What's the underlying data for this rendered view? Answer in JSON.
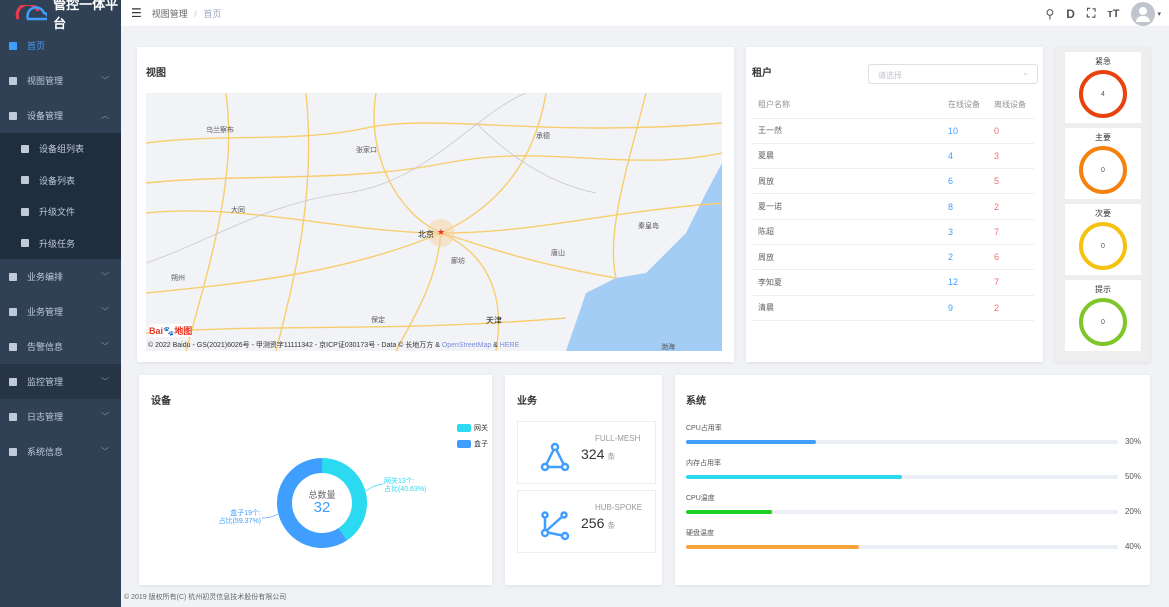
{
  "app": {
    "title": "管控一体平台"
  },
  "sidebar": {
    "items": [
      {
        "label": "首页",
        "active": true
      },
      {
        "label": "视图管理"
      },
      {
        "label": "设备管理",
        "open": true
      },
      {
        "label": "设备组列表",
        "sub": true
      },
      {
        "label": "设备列表",
        "sub": true
      },
      {
        "label": "升级文件",
        "sub": true
      },
      {
        "label": "升级任务",
        "sub": true
      },
      {
        "label": "业务编排"
      },
      {
        "label": "业务管理"
      },
      {
        "label": "告警信息"
      },
      {
        "label": "监控管理"
      },
      {
        "label": "日志管理"
      },
      {
        "label": "系统信息"
      }
    ]
  },
  "header": {
    "breadcrumb": [
      "视图管理",
      "首页"
    ],
    "separator": "/",
    "icons": [
      "search-icon",
      "d-icon",
      "fullscreen-icon",
      "font-size-icon",
      "avatar"
    ]
  },
  "map": {
    "title": "视图",
    "cities": [
      "乌兰察布",
      "大同",
      "朔州",
      "张家口",
      "承德",
      "北京",
      "廊坊",
      "天津",
      "唐山",
      "秦皇岛",
      "保定",
      "渤海"
    ],
    "attribution": "© 2022 Baidu - GS(2021)6026号 - 甲测资字11111342 - 京ICP证030173号 - Data © 长地万方 & ",
    "osm": "OpenStreetMap",
    "amp": " & ",
    "here": "HERE",
    "logo": "Baidu地图"
  },
  "tenant": {
    "title": "租户",
    "placeholder": "请选择",
    "columns": [
      "租户名称",
      "在线设备",
      "离线设备"
    ],
    "rows": [
      [
        "王一然",
        "10",
        "0"
      ],
      [
        "夏晨",
        "4",
        "3"
      ],
      [
        "周放",
        "6",
        "5"
      ],
      [
        "夏一诺",
        "8",
        "2"
      ],
      [
        "陈超",
        "3",
        "7"
      ],
      [
        "周放",
        "2",
        "6"
      ],
      [
        "李知夏",
        "12",
        "7"
      ],
      [
        "清晨",
        "9",
        "2"
      ]
    ]
  },
  "alarms": [
    {
      "label": "紧急",
      "value": "4",
      "color": "#e8420f"
    },
    {
      "label": "主要",
      "value": "0",
      "color": "#f5820f"
    },
    {
      "label": "次要",
      "value": "0",
      "color": "#f5c211"
    },
    {
      "label": "提示",
      "value": "0",
      "color": "#7ec629"
    }
  ],
  "devices": {
    "title": "设备",
    "center_label": "总数量",
    "total": "32",
    "legend": [
      "网关",
      "盒子"
    ],
    "label_gateway_1": "网关13个:",
    "label_gateway_2": "占比(40.63%)",
    "label_box_1": "盒子19个:",
    "label_box_2": "占比(59.37%)"
  },
  "chart_data": {
    "type": "pie",
    "title": "设备",
    "categories": [
      "网关",
      "盒子"
    ],
    "values": [
      13,
      19
    ],
    "colors": [
      "#2bdaf0",
      "#409eff"
    ],
    "legend": "top-right"
  },
  "services": {
    "title": "业务",
    "items": [
      {
        "name": "FULL-MESH",
        "count": "324",
        "unit": "条"
      },
      {
        "name": "HUB-SPOKE",
        "count": "256",
        "unit": "条"
      }
    ]
  },
  "system": {
    "title": "系统",
    "metrics": [
      {
        "label": "CPU占用率",
        "percent": 30,
        "text": "30%",
        "color": "#409eff"
      },
      {
        "label": "内存占用率",
        "percent": 50,
        "text": "50%",
        "color": "#2bdaf0"
      },
      {
        "label": "CPU温度",
        "percent": 20,
        "text": "20%",
        "color": "#1fcf1f"
      },
      {
        "label": "硬盘温度",
        "percent": 40,
        "text": "40%",
        "color": "#f7a53c"
      }
    ]
  },
  "footer": "© 2019 版权所有(C) 杭州初灵信息技术股份有限公司"
}
